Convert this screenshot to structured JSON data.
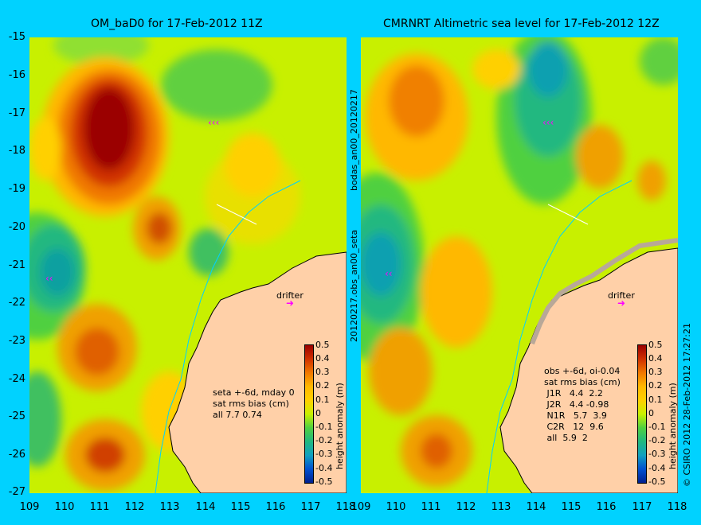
{
  "left_panel": {
    "title": "OM_baD0 for 17-Feb-2012 11Z",
    "stats": "seta +-6d, mday 0\nsat rms bias (cm)\nall 7.7 0.74",
    "drifter_label": "drifter"
  },
  "right_panel": {
    "title": "CMRNRT Altimetric sea level  for 17-Feb-2012 12Z",
    "stats": "obs +-6d, oi-0.04\nsat rms bias (cm)\n J1R   4.4  2.2\n J2R   4.4 -0.98\n N1R   5.7  3.9\n C2R   12  9.6\n all  5.9  2",
    "drifter_label": "drifter"
  },
  "y_axis_labels": [
    "-15",
    "-16",
    "-17",
    "-18",
    "-19",
    "-20",
    "-21",
    "-22",
    "-23",
    "-24",
    "-25",
    "-26",
    "-27"
  ],
  "x_axis_labels_left": [
    "109",
    "110",
    "111",
    "112",
    "113",
    "114",
    "115",
    "116",
    "117",
    "118"
  ],
  "x_axis_labels_right": [
    "109",
    "110",
    "111",
    "112",
    "113",
    "114",
    "115",
    "116",
    "117",
    "118"
  ],
  "colorbar": {
    "title": "height anomaly (m)",
    "ticks": [
      "0.5",
      "0.4",
      "0.3",
      "0.2",
      "0.1",
      "0",
      "-0.1",
      "-0.2",
      "-0.3",
      "-0.4",
      "-0.5"
    ]
  },
  "vertical_text_1": "bodas_an00_20120217",
  "vertical_text_2": "20120217.obs_an00_seta",
  "copyright": "© CSIRO 2012  28-Feb-2012 17:27:21",
  "colors": {
    "background": "#00d2ff",
    "land": "#ffd0a8",
    "high": "#9b0000",
    "low": "#00208f"
  }
}
